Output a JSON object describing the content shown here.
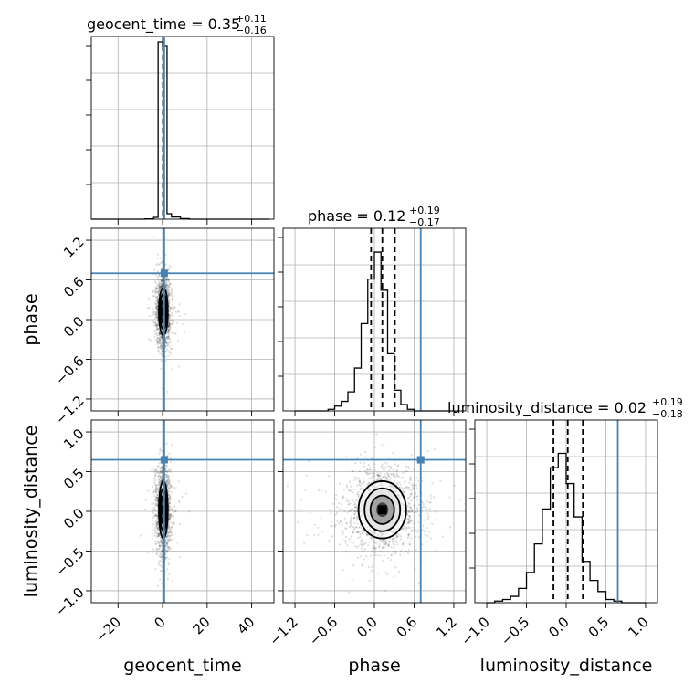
{
  "chart_data": {
    "type": "corner",
    "parameters": [
      {
        "name": "geocent_time",
        "axis_label": "geocent_time",
        "title": {
          "main": "geocent_time = 0.35",
          "plus": "+0.11",
          "minus": "−0.16"
        },
        "median": 0.35,
        "err_plus": 0.11,
        "err_minus": 0.16,
        "range": [
          -32,
          50
        ],
        "ticks": [
          -20,
          0,
          20,
          40
        ],
        "truth": 0.75
      },
      {
        "name": "phase",
        "axis_label": "phase",
        "title": {
          "main": "phase = 0.12",
          "plus": "+0.19",
          "minus": "−0.17"
        },
        "median": 0.12,
        "err_plus": 0.19,
        "err_minus": 0.17,
        "range": [
          -1.38,
          1.38
        ],
        "ticks": [
          -1.2,
          -0.6,
          0.0,
          0.6,
          1.2
        ],
        "tick_labels": [
          "−1.2",
          "−0.6",
          "0.0",
          "0.6",
          "1.2"
        ],
        "truth": 0.7
      },
      {
        "name": "luminosity_distance",
        "axis_label": "luminosity_distance",
        "title": {
          "main": "luminosity_distance = 0.02",
          "plus": "+0.19",
          "minus": "−0.18"
        },
        "median": 0.02,
        "err_plus": 0.19,
        "err_minus": 0.18,
        "range": [
          -1.15,
          1.15
        ],
        "ticks": [
          -1.0,
          -0.5,
          0.0,
          0.5,
          1.0
        ],
        "tick_labels": [
          "−1.0",
          "−0.5",
          "0.0",
          "0.5",
          "1.0"
        ],
        "truth": 0.65
      }
    ],
    "tick_labels_geocent_time": [
      "−20",
      "0",
      "20",
      "40"
    ],
    "quantiles": [
      0.16,
      0.5,
      0.84
    ],
    "histograms": [
      {
        "param": "geocent_time",
        "bin_edges": [
          -32,
          -28,
          -24,
          -20,
          -16,
          -12,
          -8,
          -4,
          -2,
          0,
          2,
          4,
          8,
          12,
          16,
          20,
          24,
          28,
          32,
          36,
          40,
          44,
          48
        ],
        "counts": [
          0,
          0,
          0,
          0,
          0,
          0,
          0.002,
          0.01,
          0.97,
          0.95,
          0.03,
          0.012,
          0.003,
          0,
          0,
          0,
          0,
          0,
          0,
          0,
          0,
          0
        ],
        "ymax": 1.0
      },
      {
        "param": "phase",
        "bin_edges": [
          -1.2,
          -1.1,
          -1.0,
          -0.9,
          -0.8,
          -0.7,
          -0.6,
          -0.5,
          -0.4,
          -0.3,
          -0.2,
          -0.1,
          0.0,
          0.1,
          0.2,
          0.3,
          0.4,
          0.5,
          0.6,
          0.7,
          0.8,
          0.9,
          1.0,
          1.1,
          1.2
        ],
        "counts": [
          0,
          0,
          0,
          0,
          0,
          0.01,
          0.03,
          0.06,
          0.12,
          0.27,
          0.55,
          0.83,
          1.0,
          0.76,
          0.36,
          0.13,
          0.04,
          0.01,
          0,
          0,
          0,
          0,
          0,
          0
        ],
        "ymax": 1.15
      },
      {
        "param": "luminosity_distance",
        "bin_edges": [
          -1.0,
          -0.9,
          -0.8,
          -0.7,
          -0.6,
          -0.5,
          -0.4,
          -0.3,
          -0.2,
          -0.1,
          0.0,
          0.1,
          0.2,
          0.3,
          0.4,
          0.5,
          0.6,
          0.7,
          0.8,
          0.9,
          1.0
        ],
        "counts": [
          0,
          0.01,
          0.02,
          0.04,
          0.09,
          0.19,
          0.37,
          0.59,
          0.85,
          0.94,
          0.75,
          0.54,
          0.26,
          0.14,
          0.07,
          0.02,
          0.01,
          0,
          0,
          0
        ],
        "ymax": 1.15
      }
    ],
    "joint_2d": [
      {
        "x": "geocent_time",
        "y": "phase",
        "center": [
          0.35,
          0.12
        ],
        "sd": [
          1.0,
          0.18
        ],
        "contour_sigmas": [
          0.5,
          1.0,
          1.5,
          2.0
        ]
      },
      {
        "x": "geocent_time",
        "y": "luminosity_distance",
        "center": [
          0.35,
          0.02
        ],
        "sd": [
          1.0,
          0.18
        ],
        "contour_sigmas": [
          0.5,
          1.0,
          1.5,
          2.0
        ]
      },
      {
        "x": "phase",
        "y": "luminosity_distance",
        "center": [
          0.12,
          0.02
        ],
        "sd": [
          0.18,
          0.18
        ],
        "contour_sigmas": [
          0.5,
          1.0,
          1.5,
          2.0
        ]
      }
    ],
    "truth_color": "#4682b4",
    "grid": true,
    "legend": "none"
  }
}
